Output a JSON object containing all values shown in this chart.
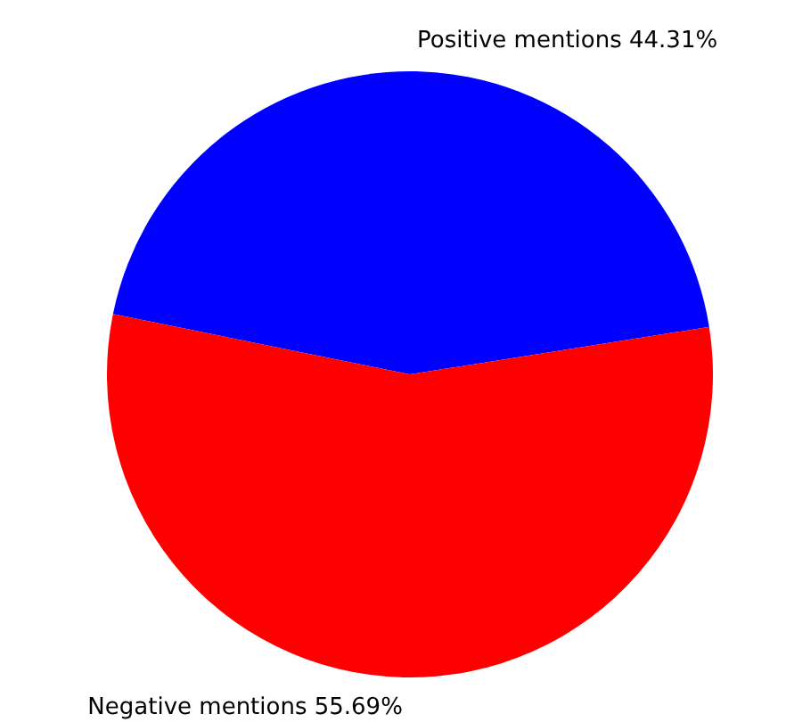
{
  "chart_data": {
    "type": "pie",
    "categories": [
      "Positive mentions 44.31%",
      "Negative mentions 55.69%"
    ],
    "values": [
      44.31,
      55.69
    ],
    "colors": [
      "#0000ff",
      "#ff0000"
    ],
    "legend": false
  }
}
